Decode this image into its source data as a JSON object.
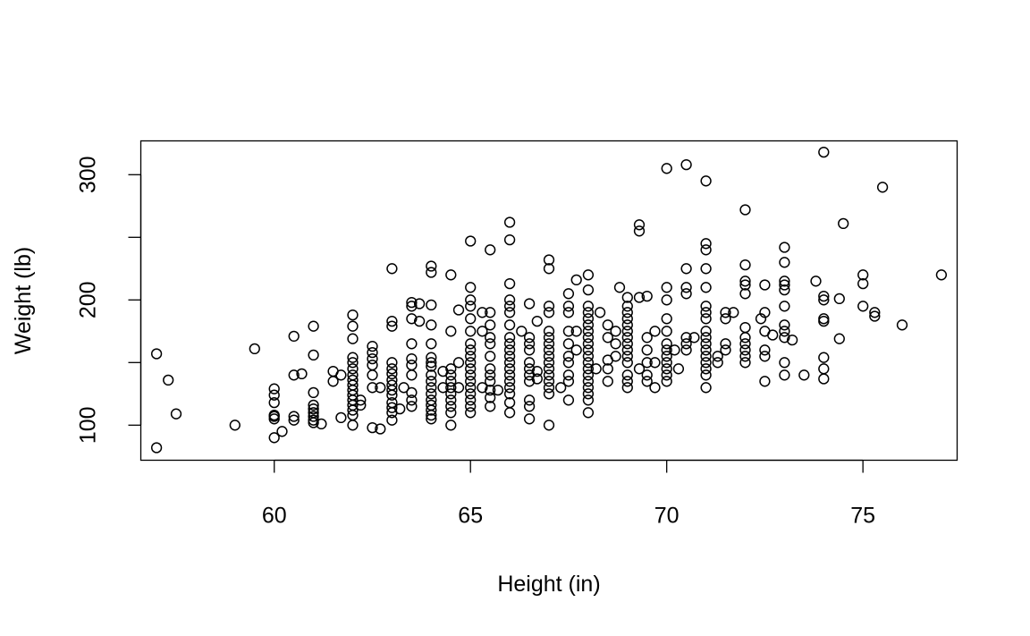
{
  "chart_data": {
    "type": "scatter",
    "title": "",
    "xlabel": "Height (in)",
    "ylabel": "Weight (lb)",
    "xlim": [
      56.6,
      77.4
    ],
    "ylim": [
      72,
      327
    ],
    "xticks": [
      60,
      65,
      70,
      75
    ],
    "yticks": [
      100,
      150,
      200,
      250,
      300
    ],
    "ytick_labels_shown": [
      100,
      200,
      300
    ],
    "grid": false,
    "legend": "none",
    "marker": "open-circle",
    "color": "#000000",
    "points": [
      [
        57,
        157
      ],
      [
        57,
        82
      ],
      [
        57.3,
        136
      ],
      [
        57.5,
        109
      ],
      [
        59,
        100
      ],
      [
        59.5,
        161
      ],
      [
        60,
        90
      ],
      [
        60,
        105
      ],
      [
        60,
        107
      ],
      [
        60,
        108
      ],
      [
        60,
        118
      ],
      [
        60,
        124
      ],
      [
        60,
        129
      ],
      [
        60.2,
        95
      ],
      [
        60.5,
        104
      ],
      [
        60.5,
        107
      ],
      [
        60.5,
        140
      ],
      [
        60.5,
        171
      ],
      [
        60.7,
        141
      ],
      [
        61,
        102
      ],
      [
        61,
        104
      ],
      [
        61,
        107
      ],
      [
        61,
        110
      ],
      [
        61,
        113
      ],
      [
        61,
        116
      ],
      [
        61,
        126
      ],
      [
        61,
        156
      ],
      [
        61,
        179
      ],
      [
        61.2,
        101
      ],
      [
        61.5,
        135
      ],
      [
        61.5,
        143
      ],
      [
        61.7,
        106
      ],
      [
        61.7,
        140
      ],
      [
        62,
        100
      ],
      [
        62,
        108
      ],
      [
        62,
        112
      ],
      [
        62,
        116
      ],
      [
        62,
        120
      ],
      [
        62,
        124
      ],
      [
        62,
        128
      ],
      [
        62,
        132
      ],
      [
        62,
        136
      ],
      [
        62,
        140
      ],
      [
        62,
        145
      ],
      [
        62,
        150
      ],
      [
        62,
        154
      ],
      [
        62,
        169
      ],
      [
        62,
        179
      ],
      [
        62,
        188
      ],
      [
        62.2,
        116
      ],
      [
        62.2,
        120
      ],
      [
        62.5,
        98
      ],
      [
        62.5,
        130
      ],
      [
        62.5,
        140
      ],
      [
        62.5,
        148
      ],
      [
        62.5,
        153
      ],
      [
        62.5,
        158
      ],
      [
        62.5,
        163
      ],
      [
        62.7,
        97
      ],
      [
        62.7,
        130
      ],
      [
        63,
        104
      ],
      [
        63,
        110
      ],
      [
        63,
        114
      ],
      [
        63,
        118
      ],
      [
        63,
        124
      ],
      [
        63,
        128
      ],
      [
        63,
        132
      ],
      [
        63,
        136
      ],
      [
        63,
        141
      ],
      [
        63,
        145
      ],
      [
        63,
        150
      ],
      [
        63,
        179
      ],
      [
        63,
        183
      ],
      [
        63,
        225
      ],
      [
        63.2,
        113
      ],
      [
        63.3,
        130
      ],
      [
        63.5,
        115
      ],
      [
        63.5,
        120
      ],
      [
        63.5,
        126
      ],
      [
        63.5,
        140
      ],
      [
        63.5,
        148
      ],
      [
        63.5,
        153
      ],
      [
        63.5,
        165
      ],
      [
        63.5,
        185
      ],
      [
        63.5,
        195
      ],
      [
        63.5,
        198
      ],
      [
        63.7,
        183
      ],
      [
        63.7,
        197
      ],
      [
        64,
        105
      ],
      [
        64,
        108
      ],
      [
        64,
        112
      ],
      [
        64,
        116
      ],
      [
        64,
        120
      ],
      [
        64,
        125
      ],
      [
        64,
        130
      ],
      [
        64,
        135
      ],
      [
        64,
        140
      ],
      [
        64,
        147
      ],
      [
        64,
        150
      ],
      [
        64,
        154
      ],
      [
        64,
        165
      ],
      [
        64,
        180
      ],
      [
        64,
        196
      ],
      [
        64,
        222
      ],
      [
        64,
        227
      ],
      [
        64.3,
        130
      ],
      [
        64.3,
        143
      ],
      [
        64.5,
        100
      ],
      [
        64.5,
        110
      ],
      [
        64.5,
        115
      ],
      [
        64.5,
        120
      ],
      [
        64.5,
        125
      ],
      [
        64.5,
        130
      ],
      [
        64.5,
        135
      ],
      [
        64.5,
        140
      ],
      [
        64.5,
        145
      ],
      [
        64.5,
        175
      ],
      [
        64.5,
        220
      ],
      [
        64.7,
        130
      ],
      [
        64.7,
        150
      ],
      [
        64.7,
        192
      ],
      [
        65,
        110
      ],
      [
        65,
        115
      ],
      [
        65,
        120
      ],
      [
        65,
        125
      ],
      [
        65,
        130
      ],
      [
        65,
        135
      ],
      [
        65,
        140
      ],
      [
        65,
        145
      ],
      [
        65,
        150
      ],
      [
        65,
        155
      ],
      [
        65,
        160
      ],
      [
        65,
        165
      ],
      [
        65,
        175
      ],
      [
        65,
        185
      ],
      [
        65,
        195
      ],
      [
        65,
        200
      ],
      [
        65,
        210
      ],
      [
        65,
        247
      ],
      [
        65.3,
        130
      ],
      [
        65.3,
        175
      ],
      [
        65.3,
        190
      ],
      [
        65.5,
        115
      ],
      [
        65.5,
        122
      ],
      [
        65.5,
        128
      ],
      [
        65.5,
        135
      ],
      [
        65.5,
        140
      ],
      [
        65.5,
        145
      ],
      [
        65.5,
        155
      ],
      [
        65.5,
        165
      ],
      [
        65.5,
        170
      ],
      [
        65.5,
        180
      ],
      [
        65.5,
        190
      ],
      [
        65.5,
        240
      ],
      [
        65.7,
        128
      ],
      [
        66,
        110
      ],
      [
        66,
        118
      ],
      [
        66,
        125
      ],
      [
        66,
        130
      ],
      [
        66,
        135
      ],
      [
        66,
        140
      ],
      [
        66,
        145
      ],
      [
        66,
        150
      ],
      [
        66,
        155
      ],
      [
        66,
        160
      ],
      [
        66,
        165
      ],
      [
        66,
        170
      ],
      [
        66,
        180
      ],
      [
        66,
        190
      ],
      [
        66,
        195
      ],
      [
        66,
        200
      ],
      [
        66,
        213
      ],
      [
        66,
        248
      ],
      [
        66,
        262
      ],
      [
        66.3,
        175
      ],
      [
        66.5,
        105
      ],
      [
        66.5,
        115
      ],
      [
        66.5,
        120
      ],
      [
        66.5,
        135
      ],
      [
        66.5,
        140
      ],
      [
        66.5,
        145
      ],
      [
        66.5,
        150
      ],
      [
        66.5,
        160
      ],
      [
        66.5,
        165
      ],
      [
        66.5,
        170
      ],
      [
        66.5,
        197
      ],
      [
        66.7,
        137
      ],
      [
        66.7,
        143
      ],
      [
        66.7,
        183
      ],
      [
        67,
        100
      ],
      [
        67,
        125
      ],
      [
        67,
        130
      ],
      [
        67,
        135
      ],
      [
        67,
        140
      ],
      [
        67,
        145
      ],
      [
        67,
        150
      ],
      [
        67,
        155
      ],
      [
        67,
        160
      ],
      [
        67,
        165
      ],
      [
        67,
        170
      ],
      [
        67,
        175
      ],
      [
        67,
        190
      ],
      [
        67,
        195
      ],
      [
        67,
        225
      ],
      [
        67,
        232
      ],
      [
        67.3,
        130
      ],
      [
        67.5,
        120
      ],
      [
        67.5,
        135
      ],
      [
        67.5,
        140
      ],
      [
        67.5,
        150
      ],
      [
        67.5,
        155
      ],
      [
        67.5,
        165
      ],
      [
        67.5,
        175
      ],
      [
        67.5,
        190
      ],
      [
        67.5,
        195
      ],
      [
        67.5,
        205
      ],
      [
        67.7,
        160
      ],
      [
        67.7,
        175
      ],
      [
        67.7,
        216
      ],
      [
        68,
        110
      ],
      [
        68,
        120
      ],
      [
        68,
        125
      ],
      [
        68,
        130
      ],
      [
        68,
        135
      ],
      [
        68,
        140
      ],
      [
        68,
        145
      ],
      [
        68,
        150
      ],
      [
        68,
        155
      ],
      [
        68,
        160
      ],
      [
        68,
        165
      ],
      [
        68,
        170
      ],
      [
        68,
        175
      ],
      [
        68,
        180
      ],
      [
        68,
        185
      ],
      [
        68,
        190
      ],
      [
        68,
        195
      ],
      [
        68,
        208
      ],
      [
        68,
        220
      ],
      [
        68.2,
        145
      ],
      [
        68.3,
        190
      ],
      [
        68.5,
        135
      ],
      [
        68.5,
        145
      ],
      [
        68.5,
        152
      ],
      [
        68.5,
        170
      ],
      [
        68.5,
        180
      ],
      [
        68.7,
        155
      ],
      [
        68.7,
        165
      ],
      [
        68.7,
        175
      ],
      [
        68.8,
        210
      ],
      [
        69,
        130
      ],
      [
        69,
        135
      ],
      [
        69,
        140
      ],
      [
        69,
        150
      ],
      [
        69,
        155
      ],
      [
        69,
        160
      ],
      [
        69,
        165
      ],
      [
        69,
        170
      ],
      [
        69,
        175
      ],
      [
        69,
        180
      ],
      [
        69,
        185
      ],
      [
        69,
        190
      ],
      [
        69,
        195
      ],
      [
        69,
        202
      ],
      [
        69.3,
        145
      ],
      [
        69.3,
        202
      ],
      [
        69.3,
        255
      ],
      [
        69.3,
        260
      ],
      [
        69.5,
        135
      ],
      [
        69.5,
        140
      ],
      [
        69.5,
        150
      ],
      [
        69.5,
        160
      ],
      [
        69.5,
        170
      ],
      [
        69.5,
        203
      ],
      [
        69.7,
        130
      ],
      [
        69.7,
        150
      ],
      [
        69.7,
        175
      ],
      [
        70,
        135
      ],
      [
        70,
        140
      ],
      [
        70,
        145
      ],
      [
        70,
        150
      ],
      [
        70,
        155
      ],
      [
        70,
        160
      ],
      [
        70,
        165
      ],
      [
        70,
        175
      ],
      [
        70,
        185
      ],
      [
        70,
        200
      ],
      [
        70,
        210
      ],
      [
        70,
        305
      ],
      [
        70.2,
        160
      ],
      [
        70.3,
        145
      ],
      [
        70.5,
        160
      ],
      [
        70.5,
        165
      ],
      [
        70.5,
        170
      ],
      [
        70.5,
        205
      ],
      [
        70.5,
        210
      ],
      [
        70.5,
        225
      ],
      [
        70.5,
        308
      ],
      [
        70.7,
        170
      ],
      [
        71,
        130
      ],
      [
        71,
        140
      ],
      [
        71,
        145
      ],
      [
        71,
        150
      ],
      [
        71,
        155
      ],
      [
        71,
        160
      ],
      [
        71,
        165
      ],
      [
        71,
        170
      ],
      [
        71,
        175
      ],
      [
        71,
        185
      ],
      [
        71,
        190
      ],
      [
        71,
        195
      ],
      [
        71,
        210
      ],
      [
        71,
        225
      ],
      [
        71,
        240
      ],
      [
        71,
        245
      ],
      [
        71,
        295
      ],
      [
        71.3,
        150
      ],
      [
        71.3,
        155
      ],
      [
        71.5,
        160
      ],
      [
        71.5,
        165
      ],
      [
        71.5,
        185
      ],
      [
        71.5,
        190
      ],
      [
        71.7,
        190
      ],
      [
        72,
        150
      ],
      [
        72,
        155
      ],
      [
        72,
        160
      ],
      [
        72,
        165
      ],
      [
        72,
        170
      ],
      [
        72,
        178
      ],
      [
        72,
        205
      ],
      [
        72,
        212
      ],
      [
        72,
        215
      ],
      [
        72,
        228
      ],
      [
        72,
        272
      ],
      [
        72.4,
        185
      ],
      [
        72.5,
        135
      ],
      [
        72.5,
        155
      ],
      [
        72.5,
        160
      ],
      [
        72.5,
        175
      ],
      [
        72.5,
        190
      ],
      [
        72.5,
        212
      ],
      [
        72.7,
        172
      ],
      [
        73,
        140
      ],
      [
        73,
        150
      ],
      [
        73,
        170
      ],
      [
        73,
        175
      ],
      [
        73,
        180
      ],
      [
        73,
        195
      ],
      [
        73,
        208
      ],
      [
        73,
        212
      ],
      [
        73,
        215
      ],
      [
        73,
        230
      ],
      [
        73,
        242
      ],
      [
        73.2,
        168
      ],
      [
        73.5,
        140
      ],
      [
        73.8,
        215
      ],
      [
        74,
        137
      ],
      [
        74,
        145
      ],
      [
        74,
        154
      ],
      [
        74,
        183
      ],
      [
        74,
        185
      ],
      [
        74,
        200
      ],
      [
        74,
        203
      ],
      [
        74,
        318
      ],
      [
        74.4,
        169
      ],
      [
        74.4,
        201
      ],
      [
        74.5,
        261
      ],
      [
        75,
        195
      ],
      [
        75,
        213
      ],
      [
        75,
        220
      ],
      [
        75.3,
        187
      ],
      [
        75.3,
        190
      ],
      [
        75.5,
        290
      ],
      [
        76,
        180
      ],
      [
        77,
        220
      ]
    ]
  }
}
